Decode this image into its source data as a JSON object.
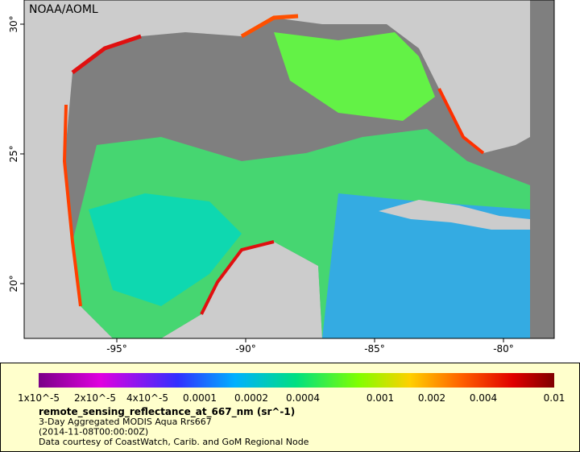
{
  "map": {
    "credit": "NOAA/AOML",
    "lon_ticks": [
      "-95°",
      "-90°",
      "-85°",
      "-80°"
    ],
    "lat_ticks": [
      "20°",
      "25°",
      "30°"
    ]
  },
  "legend": {
    "ticks": [
      "1x10^-5",
      "2x10^-5",
      "4x10^-5",
      "0.0001",
      "0.0002",
      "0.0004",
      "0.001",
      "0.002",
      "0.004",
      "0.01"
    ],
    "variable": "remote_sensing_reflectance_at_667_nm (sr^-1)",
    "lines": [
      "3-Day Aggregated MODIS Aqua Rrs667",
      "(2014-11-08T00:00:00Z)",
      "Data courtesy of CoastWatch, Carib. and GoM Regional Node"
    ]
  }
}
